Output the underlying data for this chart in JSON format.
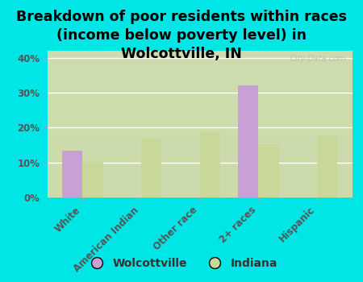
{
  "title": "Breakdown of poor residents within races\n(income below poverty level) in\nWolcottville, IN",
  "categories": [
    "White",
    "American Indian",
    "Other race",
    "2+ races",
    "Hispanic"
  ],
  "wolcottville_values": [
    13.5,
    0,
    0,
    32.0,
    0
  ],
  "indiana_values": [
    10.2,
    16.8,
    18.8,
    15.2,
    17.8
  ],
  "wolcottville_color": "#c8a0d8",
  "indiana_color": "#c8d898",
  "background_color": "#00e5e5",
  "grad_top": "#f5f5e8",
  "grad_bottom": "#ccdcaa",
  "ylabel_ticks": [
    "0%",
    "10%",
    "20%",
    "30%",
    "40%"
  ],
  "ytick_values": [
    0,
    10,
    20,
    30,
    40
  ],
  "ylim": [
    0,
    42
  ],
  "bar_width": 0.35,
  "title_fontsize": 12.5,
  "tick_fontsize": 8.5,
  "legend_fontsize": 10,
  "watermark": "City-Data.com"
}
